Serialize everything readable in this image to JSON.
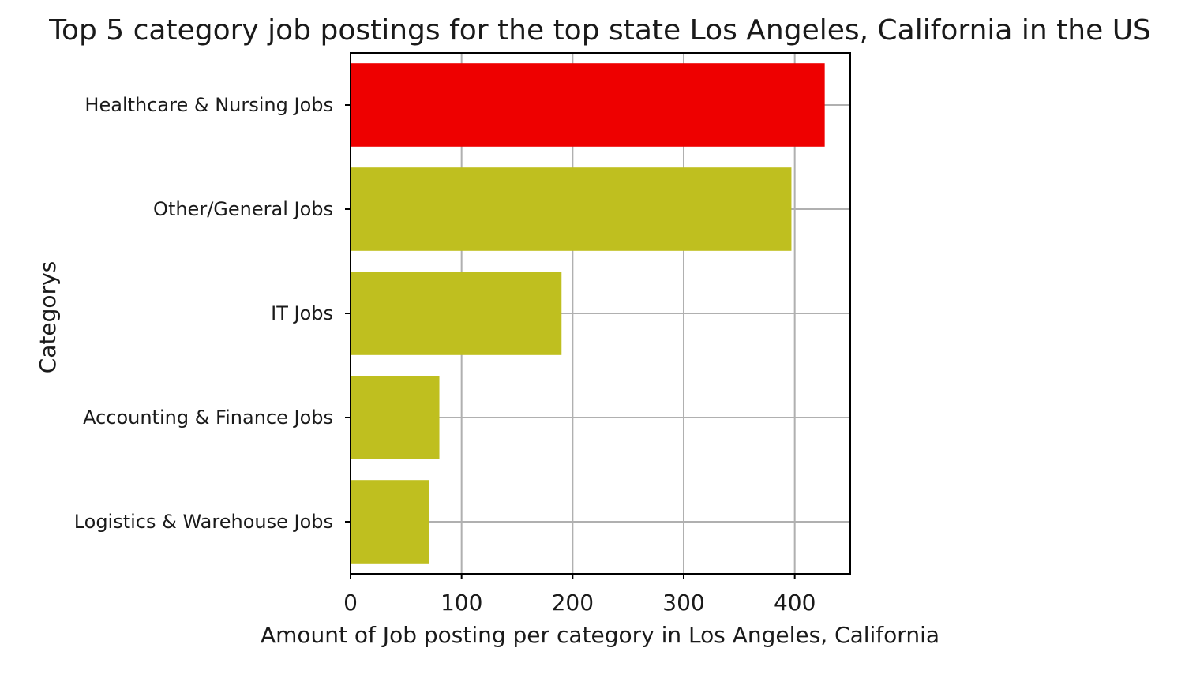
{
  "chart_data": {
    "type": "bar",
    "orientation": "horizontal",
    "title": "Top 5 category job postings for the top state Los Angeles, California in the US",
    "xlabel": "Amount of Job posting per category in Los Angeles, California",
    "ylabel": "Categorys",
    "categories": [
      "Healthcare & Nursing Jobs",
      "Other/General Jobs",
      "IT Jobs",
      "Accounting & Finance Jobs",
      "Logistics & Warehouse Jobs"
    ],
    "values": [
      427,
      397,
      190,
      80,
      71
    ],
    "bar_colors": [
      "#ee0000",
      "#bfbf1f",
      "#bfbf1f",
      "#bfbf1f",
      "#bfbf1f"
    ],
    "xlim": [
      0,
      450
    ],
    "xticks": [
      0,
      100,
      200,
      300,
      400
    ],
    "xtick_labels": [
      "0",
      "100",
      "200",
      "300",
      "400"
    ],
    "grid": true
  }
}
